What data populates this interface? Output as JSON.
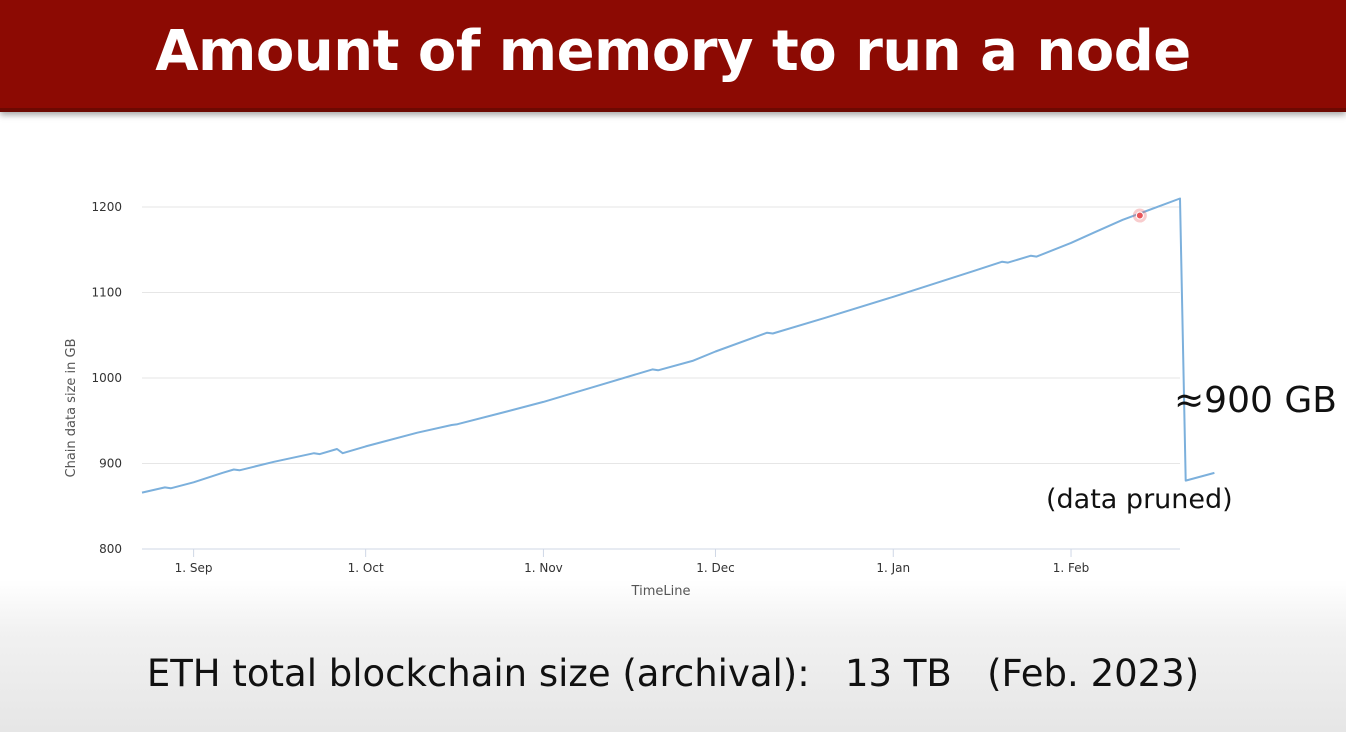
{
  "slide": {
    "title": "Amount of memory to run a node",
    "caption": "ETH total blockchain size (archival):   13 TB   (Feb. 2023)",
    "annotation_size": "≈900 GB",
    "annotation_note": "(data pruned)"
  },
  "colors": {
    "title_bar": "#8c0a03",
    "series_line": "#7cb0dc",
    "marker": "#e8555a",
    "grid": "#e6e6e6"
  },
  "chart_data": {
    "type": "line",
    "title": "",
    "xlabel": "TimeLine",
    "ylabel": "Chain data size in GB",
    "ylim": [
      800,
      1200
    ],
    "x_range": [
      "2022-08-23",
      "2023-02-20"
    ],
    "x_ticks": [
      {
        "date": "2022-09-01",
        "label": "1. Sep"
      },
      {
        "date": "2022-10-01",
        "label": "1. Oct"
      },
      {
        "date": "2022-11-01",
        "label": "1. Nov"
      },
      {
        "date": "2022-12-01",
        "label": "1. Dec"
      },
      {
        "date": "2023-01-01",
        "label": "1. Jan"
      },
      {
        "date": "2023-02-01",
        "label": "1. Feb"
      }
    ],
    "y_ticks": [
      800,
      900,
      1000,
      1100,
      1200
    ],
    "grid": true,
    "legend": "none",
    "series": [
      {
        "points": [
          {
            "x": "2022-08-23",
            "y": 866
          },
          {
            "x": "2022-08-27",
            "y": 872
          },
          {
            "x": "2022-08-28",
            "y": 871
          },
          {
            "x": "2022-09-01",
            "y": 878
          },
          {
            "x": "2022-09-06",
            "y": 889
          },
          {
            "x": "2022-09-08",
            "y": 893
          },
          {
            "x": "2022-09-09",
            "y": 892
          },
          {
            "x": "2022-09-15",
            "y": 902
          },
          {
            "x": "2022-09-22",
            "y": 912
          },
          {
            "x": "2022-09-23",
            "y": 911
          },
          {
            "x": "2022-09-26",
            "y": 917
          },
          {
            "x": "2022-09-27",
            "y": 912
          },
          {
            "x": "2022-10-01",
            "y": 920
          },
          {
            "x": "2022-10-10",
            "y": 936
          },
          {
            "x": "2022-10-16",
            "y": 945
          },
          {
            "x": "2022-10-17",
            "y": 946
          },
          {
            "x": "2022-10-24",
            "y": 958
          },
          {
            "x": "2022-11-01",
            "y": 972
          },
          {
            "x": "2022-11-05",
            "y": 980
          },
          {
            "x": "2022-11-10",
            "y": 990
          },
          {
            "x": "2022-11-20",
            "y": 1010
          },
          {
            "x": "2022-11-21",
            "y": 1009
          },
          {
            "x": "2022-11-27",
            "y": 1020
          },
          {
            "x": "2022-12-01",
            "y": 1031
          },
          {
            "x": "2022-12-10",
            "y": 1053
          },
          {
            "x": "2022-12-11",
            "y": 1052
          },
          {
            "x": "2022-12-20",
            "y": 1070
          },
          {
            "x": "2023-01-01",
            "y": 1095
          },
          {
            "x": "2023-01-08",
            "y": 1110
          },
          {
            "x": "2023-01-15",
            "y": 1125
          },
          {
            "x": "2023-01-20",
            "y": 1136
          },
          {
            "x": "2023-01-21",
            "y": 1135
          },
          {
            "x": "2023-01-25",
            "y": 1143
          },
          {
            "x": "2023-01-26",
            "y": 1142
          },
          {
            "x": "2023-02-01",
            "y": 1158
          },
          {
            "x": "2023-02-05",
            "y": 1170
          },
          {
            "x": "2023-02-10",
            "y": 1185
          },
          {
            "x": "2023-02-20",
            "y": 1210
          },
          {
            "x": "2023-02-21",
            "y": 880
          },
          {
            "x": "2023-02-26",
            "y": 889
          }
        ]
      }
    ],
    "highlight_point": {
      "x": "2023-02-13",
      "y": 1190
    }
  }
}
